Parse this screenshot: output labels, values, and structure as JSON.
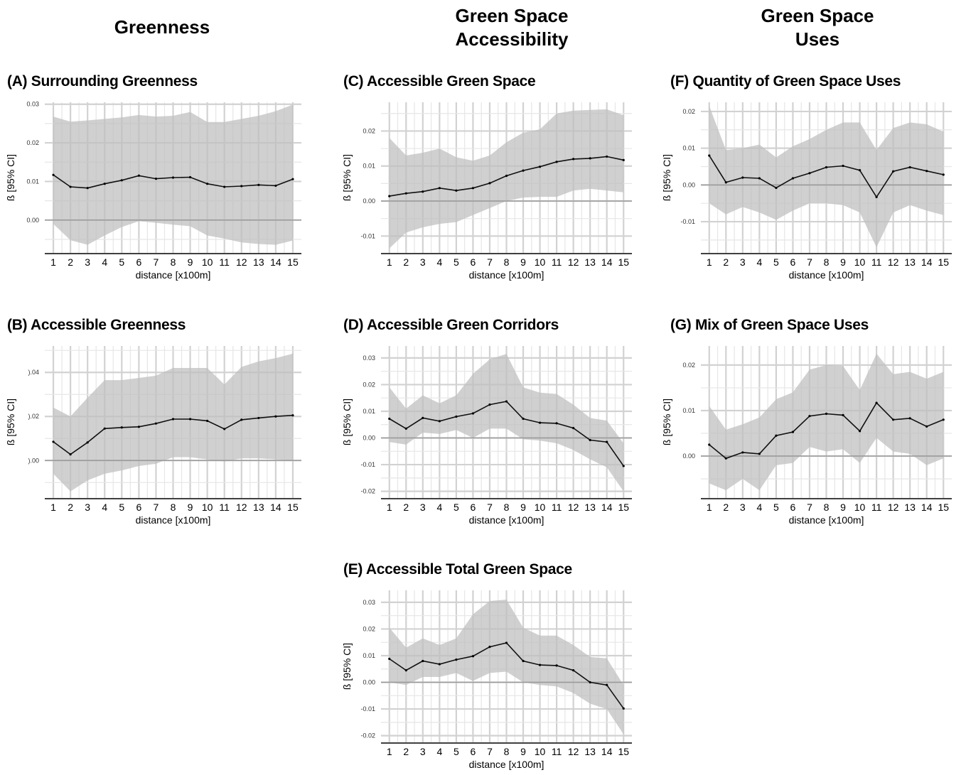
{
  "headers": {
    "greenness": "Greenness",
    "accessibility_line1": "Green Space",
    "accessibility_line2": "Accessibility",
    "uses_line1": "Green Space",
    "uses_line2": "Uses"
  },
  "chart_data": [
    {
      "id": "A",
      "type": "line",
      "title": "(A) Surrounding Greenness",
      "xlabel": "distance [x100m]",
      "ylabel": "ß [95% CI]",
      "x": [
        1,
        2,
        3,
        4,
        5,
        6,
        7,
        8,
        9,
        10,
        11,
        12,
        13,
        14,
        15
      ],
      "ylim": [
        -0.0085,
        0.0305
      ],
      "yticks": [
        0.0,
        0.01,
        0.02,
        0.03
      ],
      "ytick_labels": [
        "0.00",
        "0.01",
        "0.02",
        "0.03"
      ],
      "series": [
        {
          "values": [
            0.0117,
            0.0086,
            0.0083,
            0.0094,
            0.0103,
            0.0115,
            0.0107,
            0.011,
            0.0111,
            0.0094,
            0.0086,
            0.0088,
            0.0091,
            0.0089,
            0.0106
          ],
          "lower": [
            -0.001,
            -0.0052,
            -0.0064,
            -0.004,
            -0.0018,
            -0.0003,
            -0.0007,
            -0.0012,
            -0.0016,
            -0.004,
            -0.0048,
            -0.0058,
            -0.0062,
            -0.0064,
            -0.0053
          ],
          "upper": [
            0.0268,
            0.0255,
            0.0258,
            0.0262,
            0.0266,
            0.0272,
            0.0268,
            0.027,
            0.028,
            0.0254,
            0.0254,
            0.0262,
            0.027,
            0.0282,
            0.0299
          ]
        }
      ],
      "grid": true
    },
    {
      "id": "B",
      "type": "line",
      "title": "(B) Accessible Greenness",
      "xlabel": "distance [x100m]",
      "ylabel": "ß [95% CI]",
      "x": [
        1,
        2,
        3,
        4,
        5,
        6,
        7,
        8,
        9,
        10,
        11,
        12,
        13,
        14,
        15
      ],
      "ylim": [
        -0.017,
        0.052
      ],
      "yticks": [
        0.0,
        0.02,
        0.04
      ],
      "ytick_labels": [
        ").00",
        ").02",
        ").04"
      ],
      "series": [
        {
          "values": [
            0.0085,
            0.0028,
            0.0082,
            0.0145,
            0.015,
            0.0153,
            0.0168,
            0.0188,
            0.0188,
            0.018,
            0.0143,
            0.0185,
            0.0193,
            0.02,
            0.0205
          ],
          "lower": [
            -0.006,
            -0.014,
            -0.009,
            -0.006,
            -0.0045,
            -0.0025,
            -0.0015,
            0.0015,
            0.0015,
            0.0005,
            -0.0005,
            0.001,
            0.001,
            0.0005,
            0.0
          ],
          "upper": [
            0.024,
            0.02,
            0.0285,
            0.0365,
            0.0365,
            0.0375,
            0.0385,
            0.042,
            0.042,
            0.042,
            0.0345,
            0.0425,
            0.045,
            0.0465,
            0.0485
          ]
        }
      ],
      "grid": true
    },
    {
      "id": "C",
      "type": "line",
      "title": "(C) Accessible Green Space",
      "xlabel": "distance [x100m]",
      "ylabel": "ß [95% CI]",
      "x": [
        1,
        2,
        3,
        4,
        5,
        6,
        7,
        8,
        9,
        10,
        11,
        12,
        13,
        14,
        15
      ],
      "ylim": [
        -0.0148,
        0.0282
      ],
      "yticks": [
        -0.01,
        0.0,
        0.01,
        0.02
      ],
      "ytick_labels": [
        "-0.01",
        "0.00",
        "0.01",
        "0.02"
      ],
      "series": [
        {
          "values": [
            0.0014,
            0.0022,
            0.0027,
            0.0037,
            0.003,
            0.0037,
            0.0051,
            0.0072,
            0.0087,
            0.0098,
            0.0112,
            0.012,
            0.0122,
            0.0127,
            0.0117
          ],
          "lower": [
            -0.0135,
            -0.009,
            -0.0075,
            -0.0065,
            -0.006,
            -0.004,
            -0.002,
            0.0,
            0.001,
            0.0012,
            0.0012,
            0.003,
            0.0035,
            0.003,
            0.0025
          ],
          "upper": [
            0.018,
            0.013,
            0.0138,
            0.015,
            0.0125,
            0.0115,
            0.013,
            0.0168,
            0.0195,
            0.0205,
            0.025,
            0.0258,
            0.026,
            0.0262,
            0.0245
          ]
        }
      ],
      "grid": true
    },
    {
      "id": "D",
      "type": "line",
      "title": "(D) Accessible Green Corridors",
      "xlabel": "distance [x100m]",
      "ylabel": "ß [95% CI]",
      "x": [
        1,
        2,
        3,
        4,
        5,
        6,
        7,
        8,
        9,
        10,
        11,
        12,
        13,
        14,
        15
      ],
      "ylim": [
        -0.0225,
        0.0345
      ],
      "yticks": [
        -0.02,
        -0.01,
        0.0,
        0.01,
        0.02,
        0.03
      ],
      "ytick_labels": [
        "-0.02",
        "-0.01",
        "0.00",
        "0.01",
        "0.02",
        "0.03"
      ],
      "series": [
        {
          "values": [
            0.0072,
            0.0035,
            0.0075,
            0.0063,
            0.008,
            0.0092,
            0.0125,
            0.0137,
            0.0072,
            0.0057,
            0.0055,
            0.0037,
            -0.0008,
            -0.0015,
            -0.0105
          ],
          "lower": [
            -0.0015,
            -0.0025,
            0.002,
            0.0015,
            0.003,
            0.0,
            0.0035,
            0.0035,
            -0.0005,
            -0.001,
            -0.002,
            -0.0045,
            -0.008,
            -0.011,
            -0.02
          ],
          "upper": [
            0.019,
            0.011,
            0.016,
            0.013,
            0.016,
            0.024,
            0.0295,
            0.0315,
            0.019,
            0.017,
            0.0165,
            0.0125,
            0.0075,
            0.0065,
            -0.002
          ]
        }
      ],
      "grid": true
    },
    {
      "id": "E",
      "type": "line",
      "title": "(E) Accessible Total Green Space",
      "xlabel": "distance [x100m]",
      "ylabel": "ß [95% CI]",
      "x": [
        1,
        2,
        3,
        4,
        5,
        6,
        7,
        8,
        9,
        10,
        11,
        12,
        13,
        14,
        15
      ],
      "ylim": [
        -0.0225,
        0.0345
      ],
      "yticks": [
        -0.02,
        -0.01,
        0.0,
        0.01,
        0.02,
        0.03
      ],
      "ytick_labels": [
        "-0.02",
        "-0.01",
        "0.00",
        "0.01",
        "0.02",
        "0.03"
      ],
      "series": [
        {
          "values": [
            0.0088,
            0.0045,
            0.008,
            0.0068,
            0.0085,
            0.0098,
            0.0133,
            0.0148,
            0.008,
            0.0065,
            0.0063,
            0.0045,
            0.0,
            -0.001,
            -0.0098
          ],
          "lower": [
            0.0,
            -0.001,
            0.002,
            0.002,
            0.0035,
            0.0005,
            0.0035,
            0.004,
            0.0,
            -0.001,
            -0.0015,
            -0.004,
            -0.008,
            -0.01,
            -0.0195
          ],
          "upper": [
            0.0205,
            0.013,
            0.0165,
            0.014,
            0.0165,
            0.0255,
            0.0305,
            0.031,
            0.0205,
            0.0175,
            0.0175,
            0.014,
            0.0095,
            0.009,
            -0.001
          ]
        }
      ],
      "grid": true
    },
    {
      "id": "F",
      "type": "line",
      "title": "(F) Quantity of Green Space Uses",
      "xlabel": "distance [x100m]",
      "ylabel": "ß [95% CI]",
      "x": [
        1,
        2,
        3,
        4,
        5,
        6,
        7,
        8,
        9,
        10,
        11,
        12,
        13,
        14,
        15
      ],
      "ylim": [
        -0.0185,
        0.0225
      ],
      "yticks": [
        -0.01,
        0.0,
        0.01,
        0.02
      ],
      "ytick_labels": [
        "-0.01",
        "0.00",
        "0.01",
        "0.02"
      ],
      "series": [
        {
          "values": [
            0.008,
            0.0007,
            0.002,
            0.0018,
            -0.0008,
            0.0018,
            0.0032,
            0.0048,
            0.0052,
            0.004,
            -0.0033,
            0.0037,
            0.0048,
            0.0038,
            0.0028
          ],
          "lower": [
            -0.005,
            -0.008,
            -0.006,
            -0.0075,
            -0.0095,
            -0.007,
            -0.005,
            -0.005,
            -0.0055,
            -0.0075,
            -0.017,
            -0.0075,
            -0.0055,
            -0.007,
            -0.0082
          ],
          "upper": [
            0.0215,
            0.0095,
            0.01,
            0.011,
            0.0075,
            0.0105,
            0.0125,
            0.015,
            0.017,
            0.017,
            0.0095,
            0.0155,
            0.017,
            0.0165,
            0.0145
          ]
        }
      ],
      "grid": true
    },
    {
      "id": "G",
      "type": "line",
      "title": "(G) Mix of Green Space Uses",
      "xlabel": "distance [x100m]",
      "ylabel": "ß [95% CI]",
      "x": [
        1,
        2,
        3,
        4,
        5,
        6,
        7,
        8,
        9,
        10,
        11,
        12,
        13,
        14,
        15
      ],
      "ylim": [
        -0.0092,
        0.0242
      ],
      "yticks": [
        0.0,
        0.01,
        0.02
      ],
      "ytick_labels": [
        "0.00",
        "0.01",
        "0.02"
      ],
      "series": [
        {
          "values": [
            0.0025,
            -0.0005,
            0.0008,
            0.0005,
            0.0045,
            0.0053,
            0.0088,
            0.0093,
            0.009,
            0.0055,
            0.0117,
            0.008,
            0.0083,
            0.0065,
            0.008
          ],
          "lower": [
            -0.006,
            -0.0075,
            -0.005,
            -0.0075,
            -0.002,
            -0.0015,
            0.002,
            0.001,
            0.0015,
            -0.0015,
            0.004,
            0.001,
            0.0005,
            -0.002,
            -0.0005
          ],
          "upper": [
            0.011,
            0.0058,
            0.007,
            0.0085,
            0.0125,
            0.014,
            0.019,
            0.02,
            0.0198,
            0.0145,
            0.0225,
            0.018,
            0.0185,
            0.017,
            0.0185
          ]
        }
      ],
      "grid": true
    }
  ]
}
